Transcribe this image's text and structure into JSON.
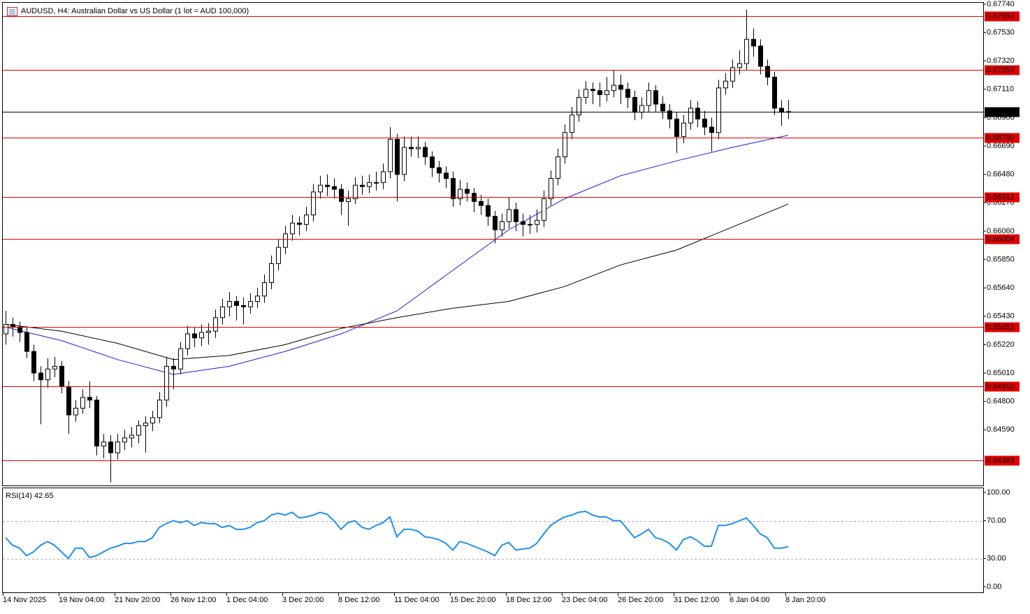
{
  "chart_data": [
    {
      "type": "candlestick",
      "title": "AUDUSD, H4:  Australian Dollar vs US Dollar (1 lot = AUD 100,000)",
      "bull_color": "#ffffff",
      "bear_color": "#000000",
      "wick_color": "#000000",
      "ylim": [
        0.64178,
        0.6775
      ],
      "yticks": [
        {
          "value": 0.6774,
          "label": "0.67740"
        },
        {
          "value": 0.6753,
          "label": "0.67530"
        },
        {
          "value": 0.6732,
          "label": "0.67320"
        },
        {
          "value": 0.6711,
          "label": "0.67110"
        },
        {
          "value": 0.669,
          "label": "0.66900"
        },
        {
          "value": 0.6669,
          "label": "0.66690"
        },
        {
          "value": 0.6648,
          "label": "0.66480"
        },
        {
          "value": 0.6627,
          "label": "0.66270"
        },
        {
          "value": 0.6606,
          "label": "0.66060"
        },
        {
          "value": 0.6585,
          "label": "0.65850"
        },
        {
          "value": 0.6564,
          "label": "0.65640"
        },
        {
          "value": 0.6543,
          "label": "0.65430"
        },
        {
          "value": 0.6522,
          "label": "0.65220"
        },
        {
          "value": 0.6501,
          "label": "0.65010"
        },
        {
          "value": 0.648,
          "label": "0.64800"
        },
        {
          "value": 0.6459,
          "label": "0.64590"
        }
      ],
      "levels": [
        {
          "value": 0.67653,
          "color": "#e00000"
        },
        {
          "value": 0.67253,
          "color": "#e00000"
        },
        {
          "value": 0.66945,
          "color": "#000000"
        },
        {
          "value": {
            "value": 0.6675,
            "label": "0.66750"
          },
          "color": "#e00000"
        },
        {
          "value": 0.66312,
          "color": "#e00000"
        },
        {
          "value": 0.66004,
          "color": "#e00000"
        },
        {
          "value": 0.65351,
          "color": "#e00000"
        },
        {
          "value": {
            "value": 0.6491,
            "label": "0.64910"
          },
          "color": "#e00000"
        },
        {
          "value": 0.64363,
          "color": "#e00000"
        }
      ],
      "categories": [
        "14 Nov 2025",
        null,
        null,
        null,
        null,
        null,
        null,
        null,
        "19 Nov 04:00",
        null,
        null,
        null,
        null,
        null,
        null,
        null,
        "21 Nov 20:00",
        null,
        null,
        null,
        null,
        null,
        null,
        null,
        "26 Nov 12:00",
        null,
        null,
        null,
        null,
        null,
        null,
        null,
        "1 Dec 04:00",
        null,
        null,
        null,
        null,
        null,
        null,
        null,
        "3 Dec 20:00",
        null,
        null,
        null,
        null,
        null,
        null,
        null,
        "8 Dec 12:00",
        null,
        null,
        null,
        null,
        null,
        null,
        null,
        "11 Dec 04:00",
        null,
        null,
        null,
        null,
        null,
        null,
        null,
        "15 Dec 20:00",
        null,
        null,
        null,
        null,
        null,
        null,
        null,
        "18 Dec 12:00",
        null,
        null,
        null,
        null,
        null,
        null,
        null,
        "23 Dec 04:00",
        null,
        null,
        null,
        null,
        null,
        null,
        null,
        "26 Dec 20:00",
        null,
        null,
        null,
        null,
        null,
        null,
        null,
        "31 Dec 12:00",
        null,
        null,
        null,
        null,
        null,
        null,
        null,
        "6 Jan 04:00",
        null,
        null,
        null,
        null,
        null,
        null,
        null,
        "8 Jan 20:00"
      ],
      "candles": [
        [
          0.653,
          0.6547,
          0.6522,
          0.6537
        ],
        [
          0.6537,
          0.6542,
          0.6528,
          0.6535
        ],
        [
          0.6535,
          0.6539,
          0.6524,
          0.6531
        ],
        [
          0.6531,
          0.6535,
          0.6512,
          0.6517
        ],
        [
          0.6517,
          0.6522,
          0.6495,
          0.6501
        ],
        [
          0.6501,
          0.6506,
          0.6463,
          0.6496
        ],
        [
          0.6496,
          0.6512,
          0.649,
          0.6504
        ],
        [
          0.6504,
          0.6513,
          0.6498,
          0.6506
        ],
        [
          0.6506,
          0.651,
          0.6486,
          0.6491
        ],
        [
          0.6491,
          0.6495,
          0.6456,
          0.647
        ],
        [
          0.647,
          0.6481,
          0.6465,
          0.6475
        ],
        [
          0.6475,
          0.6489,
          0.6471,
          0.6483
        ],
        [
          0.6483,
          0.6495,
          0.6475,
          0.6481
        ],
        [
          0.6481,
          0.6484,
          0.644,
          0.6447
        ],
        [
          0.6447,
          0.6456,
          0.6438,
          0.645
        ],
        [
          0.645,
          0.6455,
          0.642,
          0.6442
        ],
        [
          0.6442,
          0.6456,
          0.6437,
          0.645
        ],
        [
          0.645,
          0.6459,
          0.6444,
          0.6453
        ],
        [
          0.6453,
          0.6461,
          0.6446,
          0.6455
        ],
        [
          0.6455,
          0.6466,
          0.6449,
          0.6462
        ],
        [
          0.6462,
          0.6469,
          0.6442,
          0.6464
        ],
        [
          0.6464,
          0.6473,
          0.6458,
          0.6468
        ],
        [
          0.6468,
          0.6487,
          0.6464,
          0.6481
        ],
        [
          0.6481,
          0.6513,
          0.6476,
          0.6506
        ],
        [
          0.6506,
          0.6512,
          0.6489,
          0.6504
        ],
        [
          0.6504,
          0.6524,
          0.65,
          0.6519
        ],
        [
          0.6519,
          0.6536,
          0.6514,
          0.653
        ],
        [
          0.653,
          0.6535,
          0.652,
          0.6527
        ],
        [
          0.6527,
          0.6537,
          0.6521,
          0.6531
        ],
        [
          0.6531,
          0.6538,
          0.6522,
          0.6532
        ],
        [
          0.6532,
          0.6548,
          0.6527,
          0.6542
        ],
        [
          0.6542,
          0.6556,
          0.6537,
          0.655
        ],
        [
          0.655,
          0.6561,
          0.6543,
          0.6554
        ],
        [
          0.6554,
          0.6558,
          0.654,
          0.6551
        ],
        [
          0.6551,
          0.6557,
          0.6537,
          0.655
        ],
        [
          0.655,
          0.656,
          0.6545,
          0.6554
        ],
        [
          0.6554,
          0.6564,
          0.6549,
          0.6558
        ],
        [
          0.6558,
          0.6574,
          0.6553,
          0.6568
        ],
        [
          0.6568,
          0.6588,
          0.6563,
          0.6582
        ],
        [
          0.6582,
          0.66,
          0.6577,
          0.6594
        ],
        [
          0.6594,
          0.661,
          0.6589,
          0.6604
        ],
        [
          0.6604,
          0.6618,
          0.6599,
          0.6612
        ],
        [
          0.6612,
          0.6617,
          0.6603,
          0.6611
        ],
        [
          0.6611,
          0.6624,
          0.6606,
          0.6618
        ],
        [
          0.6618,
          0.6641,
          0.6613,
          0.6635
        ],
        [
          0.6635,
          0.6647,
          0.663,
          0.664
        ],
        [
          0.664,
          0.6648,
          0.6632,
          0.6639
        ],
        [
          0.6639,
          0.6645,
          0.663,
          0.6637
        ],
        [
          0.6637,
          0.6641,
          0.6618,
          0.6628
        ],
        [
          0.6628,
          0.6636,
          0.661,
          0.663
        ],
        [
          0.663,
          0.6646,
          0.6626,
          0.664
        ],
        [
          0.664,
          0.6647,
          0.6633,
          0.6639
        ],
        [
          0.6639,
          0.6648,
          0.6634,
          0.6642
        ],
        [
          0.6642,
          0.665,
          0.6636,
          0.6642
        ],
        [
          0.6642,
          0.6656,
          0.6637,
          0.665
        ],
        [
          0.665,
          0.6683,
          0.6645,
          0.6674
        ],
        [
          0.6674,
          0.6678,
          0.6628,
          0.6648
        ],
        [
          0.6648,
          0.6676,
          0.6643,
          0.6668
        ],
        [
          0.6668,
          0.6676,
          0.6661,
          0.6667
        ],
        [
          0.6667,
          0.6676,
          0.666,
          0.6668
        ],
        [
          0.6668,
          0.6672,
          0.6655,
          0.6661
        ],
        [
          0.6661,
          0.6665,
          0.6646,
          0.6653
        ],
        [
          0.6653,
          0.6658,
          0.6642,
          0.6649
        ],
        [
          0.6649,
          0.6654,
          0.6638,
          0.6645
        ],
        [
          0.6645,
          0.665,
          0.6624,
          0.663
        ],
        [
          0.663,
          0.6644,
          0.6625,
          0.6637
        ],
        [
          0.6637,
          0.6642,
          0.6628,
          0.6634
        ],
        [
          0.6634,
          0.6638,
          0.662,
          0.6628
        ],
        [
          0.6628,
          0.6633,
          0.6618,
          0.6625
        ],
        [
          0.6625,
          0.663,
          0.661,
          0.6617
        ],
        [
          0.6617,
          0.6621,
          0.6597,
          0.6607
        ],
        [
          0.6607,
          0.6619,
          0.6602,
          0.6613
        ],
        [
          0.6613,
          0.6631,
          0.6608,
          0.6622
        ],
        [
          0.6622,
          0.6627,
          0.6606,
          0.6613
        ],
        [
          0.6613,
          0.6619,
          0.6602,
          0.6611
        ],
        [
          0.6611,
          0.6618,
          0.6604,
          0.6611
        ],
        [
          0.6611,
          0.6622,
          0.6605,
          0.6614
        ],
        [
          0.6614,
          0.6636,
          0.6609,
          0.663
        ],
        [
          0.663,
          0.6651,
          0.6625,
          0.6645
        ],
        [
          0.6645,
          0.6667,
          0.664,
          0.6661
        ],
        [
          0.6661,
          0.6685,
          0.6656,
          0.6679
        ],
        [
          0.6679,
          0.6698,
          0.6674,
          0.6692
        ],
        [
          0.6692,
          0.6711,
          0.6687,
          0.6705
        ],
        [
          0.6705,
          0.6717,
          0.67,
          0.6711
        ],
        [
          0.6711,
          0.6716,
          0.67,
          0.671
        ],
        [
          0.671,
          0.6716,
          0.6698,
          0.6707
        ],
        [
          0.6707,
          0.672,
          0.6702,
          0.671
        ],
        [
          0.671,
          0.6725,
          0.6705,
          0.6714
        ],
        [
          0.6714,
          0.6722,
          0.67,
          0.6711
        ],
        [
          0.6711,
          0.6716,
          0.6697,
          0.6705
        ],
        [
          0.6705,
          0.671,
          0.6688,
          0.6694
        ],
        [
          0.6694,
          0.6705,
          0.6689,
          0.6699
        ],
        [
          0.6699,
          0.6716,
          0.6694,
          0.671
        ],
        [
          0.671,
          0.6714,
          0.6694,
          0.67
        ],
        [
          0.67,
          0.6706,
          0.6689,
          0.6695
        ],
        [
          0.6695,
          0.67,
          0.6682,
          0.6689
        ],
        [
          0.6689,
          0.6694,
          0.6664,
          0.6676
        ],
        [
          0.6676,
          0.6692,
          0.6671,
          0.6686
        ],
        [
          0.6686,
          0.6703,
          0.6681,
          0.6697
        ],
        [
          0.6697,
          0.6702,
          0.6683,
          0.6689
        ],
        [
          0.6689,
          0.6695,
          0.6677,
          0.6683
        ],
        [
          0.6683,
          0.669,
          0.6665,
          0.6679
        ],
        [
          0.6679,
          0.6718,
          0.6674,
          0.6712
        ],
        [
          0.6712,
          0.6723,
          0.6707,
          0.6717
        ],
        [
          0.6717,
          0.6733,
          0.6712,
          0.6727
        ],
        [
          0.6727,
          0.674,
          0.6722,
          0.673
        ],
        [
          0.673,
          0.677,
          0.6725,
          0.6748
        ],
        [
          0.6748,
          0.6756,
          0.6735,
          0.6743
        ],
        [
          0.6743,
          0.6748,
          0.6722,
          0.6728
        ],
        [
          0.6728,
          0.6733,
          0.6714,
          0.672
        ],
        [
          0.672,
          0.6724,
          0.6692,
          0.6697
        ],
        [
          0.6697,
          0.6703,
          0.6684,
          0.6694
        ],
        [
          0.6694,
          0.6703,
          0.6689,
          0.66945
        ]
      ],
      "overlays": [
        {
          "color": "#1a1adc",
          "x": [
            0,
            8,
            16,
            24,
            32,
            40,
            48,
            56,
            64,
            72,
            80,
            88,
            96,
            104,
            112
          ],
          "values": [
            0.6535,
            0.6525,
            0.6511,
            0.65,
            0.6506,
            0.6517,
            0.653,
            0.6547,
            0.6577,
            0.6607,
            0.663,
            0.6647,
            0.6658,
            0.6668,
            0.6677
          ]
        },
        {
          "color": "#000000",
          "x": [
            0,
            8,
            16,
            24,
            32,
            40,
            48,
            56,
            64,
            72,
            80,
            88,
            96,
            104,
            112
          ],
          "values": [
            0.6537,
            0.6532,
            0.6523,
            0.6511,
            0.6514,
            0.6522,
            0.6534,
            0.6542,
            0.6549,
            0.6554,
            0.6565,
            0.6581,
            0.6592,
            0.6609,
            0.6626
          ]
        }
      ]
    },
    {
      "type": "line",
      "title": "RSI(14) 42.65",
      "color": "#1e8ff0",
      "ylim": [
        -5.9,
        105.2
      ],
      "yticks": [
        {
          "value": 100,
          "label": "100.00"
        },
        {
          "value": 70,
          "label": "70.00"
        },
        {
          "value": 30,
          "label": "30.00"
        },
        {
          "value": 0,
          "label": "0.00"
        }
      ],
      "levels": [
        70,
        30
      ],
      "values": [
        52,
        44,
        41,
        33,
        37,
        44,
        48,
        44,
        37,
        30,
        41,
        41,
        31,
        33,
        37,
        41,
        43,
        46,
        46,
        48,
        48,
        52,
        63,
        67,
        70,
        68,
        70,
        65,
        68,
        67,
        67,
        63,
        65,
        61,
        61,
        63,
        68,
        70,
        76,
        78,
        76,
        79,
        73,
        74,
        76,
        79,
        77,
        70,
        61,
        68,
        70,
        63,
        61,
        65,
        68,
        74,
        53,
        61,
        61,
        59,
        53,
        52,
        50,
        46,
        39,
        48,
        46,
        43,
        40,
        37,
        33,
        44,
        47,
        39,
        40,
        41,
        46,
        56,
        65,
        70,
        74,
        76,
        79,
        80,
        76,
        74,
        74,
        70,
        70,
        61,
        52,
        56,
        61,
        52,
        50,
        46,
        39,
        50,
        53,
        49,
        43,
        43,
        65,
        65,
        67,
        70,
        73,
        65,
        56,
        52,
        41,
        41,
        42.65
      ]
    }
  ]
}
